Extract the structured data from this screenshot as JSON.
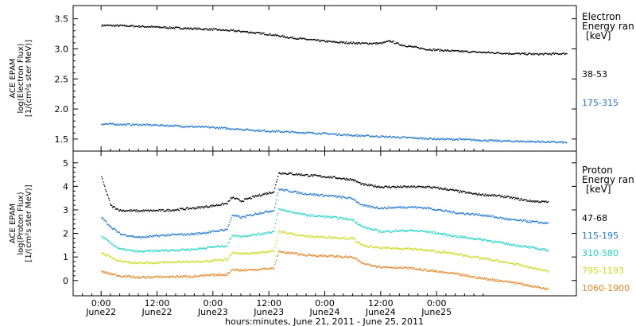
{
  "chart_data": [
    {
      "type": "scatter",
      "ylabel_lines": [
        "ACE EPAM",
        "log(Electron Flux)",
        "[1/(cm²s ster MeV)]"
      ],
      "yticks": [
        "1.5",
        "2.0",
        "2.5",
        "3.0",
        "3.5"
      ],
      "ylim": [
        1.3,
        3.72
      ],
      "legend_title": [
        "Electron",
        "Energy ran",
        "[keV]"
      ],
      "series": [
        {
          "name": "38-53",
          "color": "#000000",
          "points": [
            [
              0,
              3.4
            ],
            [
              6,
              3.39
            ],
            [
              12,
              3.37
            ],
            [
              18,
              3.35
            ],
            [
              24,
              3.33
            ],
            [
              30,
              3.3
            ],
            [
              36,
              3.25
            ],
            [
              40,
              3.2
            ],
            [
              46,
              3.15
            ],
            [
              50,
              3.12
            ],
            [
              56,
              3.1
            ],
            [
              60,
              3.1
            ],
            [
              62,
              3.14
            ],
            [
              64,
              3.08
            ],
            [
              66,
              3.05
            ],
            [
              70,
              3.0
            ],
            [
              76,
              2.97
            ],
            [
              82,
              2.95
            ],
            [
              88,
              2.93
            ],
            [
              94,
              2.92
            ],
            [
              100,
              2.93
            ]
          ]
        },
        {
          "name": "175-315",
          "color": "#1f78d4",
          "points": [
            [
              0,
              1.76
            ],
            [
              6,
              1.75
            ],
            [
              12,
              1.74
            ],
            [
              18,
              1.72
            ],
            [
              24,
              1.7
            ],
            [
              30,
              1.67
            ],
            [
              36,
              1.64
            ],
            [
              42,
              1.62
            ],
            [
              48,
              1.6
            ],
            [
              54,
              1.57
            ],
            [
              60,
              1.55
            ],
            [
              66,
              1.53
            ],
            [
              72,
              1.51
            ],
            [
              78,
              1.5
            ],
            [
              84,
              1.48
            ],
            [
              90,
              1.47
            ],
            [
              96,
              1.46
            ],
            [
              100,
              1.45
            ]
          ]
        }
      ]
    },
    {
      "type": "scatter",
      "ylabel_lines": [
        "ACE EPAM",
        "log(Proton Flux)",
        "[1/(cm²s ster MeV)]"
      ],
      "yticks": [
        "0",
        "1",
        "2",
        "3",
        "4",
        "5"
      ],
      "ylim": [
        -0.65,
        5.5
      ],
      "legend_title": [
        "Proton",
        "Energy ran",
        "[keV]"
      ],
      "series": [
        {
          "name": "47-68",
          "color": "#000000",
          "points": [
            [
              0,
              4.4
            ],
            [
              1,
              3.8
            ],
            [
              2,
              3.2
            ],
            [
              4,
              3.0
            ],
            [
              8,
              2.98
            ],
            [
              14,
              3.0
            ],
            [
              20,
              3.1
            ],
            [
              24,
              3.2
            ],
            [
              27,
              3.3
            ],
            [
              28,
              3.55
            ],
            [
              30,
              3.4
            ],
            [
              33,
              3.6
            ],
            [
              35,
              3.7
            ],
            [
              37,
              3.8
            ],
            [
              38,
              4.6
            ],
            [
              44,
              4.5
            ],
            [
              50,
              4.4
            ],
            [
              54,
              4.3
            ],
            [
              56,
              4.1
            ],
            [
              60,
              4.0
            ],
            [
              66,
              4.0
            ],
            [
              70,
              4.0
            ],
            [
              74,
              3.9
            ],
            [
              80,
              3.7
            ],
            [
              86,
              3.6
            ],
            [
              92,
              3.4
            ],
            [
              96,
              3.35
            ]
          ]
        },
        {
          "name": "115-195",
          "color": "#1f78d4",
          "points": [
            [
              0,
              2.7
            ],
            [
              2,
              2.3
            ],
            [
              4,
              2.0
            ],
            [
              8,
              1.85
            ],
            [
              14,
              1.95
            ],
            [
              20,
              2.0
            ],
            [
              24,
              2.1
            ],
            [
              27,
              2.2
            ],
            [
              28,
              2.8
            ],
            [
              30,
              2.7
            ],
            [
              34,
              2.9
            ],
            [
              37,
              3.0
            ],
            [
              38,
              3.9
            ],
            [
              44,
              3.7
            ],
            [
              50,
              3.6
            ],
            [
              54,
              3.5
            ],
            [
              56,
              3.2
            ],
            [
              60,
              3.1
            ],
            [
              66,
              3.15
            ],
            [
              70,
              3.1
            ],
            [
              76,
              2.9
            ],
            [
              82,
              2.8
            ],
            [
              88,
              2.6
            ],
            [
              96,
              2.45
            ]
          ]
        },
        {
          "name": "310-580",
          "color": "#22d6c8",
          "points": [
            [
              0,
              1.9
            ],
            [
              2,
              1.6
            ],
            [
              4,
              1.35
            ],
            [
              8,
              1.25
            ],
            [
              14,
              1.3
            ],
            [
              20,
              1.35
            ],
            [
              24,
              1.45
            ],
            [
              27,
              1.5
            ],
            [
              28,
              1.95
            ],
            [
              30,
              1.9
            ],
            [
              34,
              2.0
            ],
            [
              37,
              2.1
            ],
            [
              38,
              3.05
            ],
            [
              44,
              2.8
            ],
            [
              50,
              2.7
            ],
            [
              54,
              2.6
            ],
            [
              56,
              2.3
            ],
            [
              60,
              2.1
            ],
            [
              66,
              2.15
            ],
            [
              70,
              2.1
            ],
            [
              76,
              1.9
            ],
            [
              82,
              1.75
            ],
            [
              88,
              1.55
            ],
            [
              96,
              1.3
            ]
          ]
        },
        {
          "name": "795-1193",
          "color": "#c8dc1c",
          "points": [
            [
              0,
              1.2
            ],
            [
              2,
              1.0
            ],
            [
              4,
              0.85
            ],
            [
              8,
              0.75
            ],
            [
              14,
              0.8
            ],
            [
              20,
              0.82
            ],
            [
              24,
              0.88
            ],
            [
              27,
              0.92
            ],
            [
              28,
              1.2
            ],
            [
              30,
              1.15
            ],
            [
              34,
              1.2
            ],
            [
              37,
              1.3
            ],
            [
              38,
              2.1
            ],
            [
              44,
              1.9
            ],
            [
              50,
              1.85
            ],
            [
              54,
              1.8
            ],
            [
              56,
              1.5
            ],
            [
              60,
              1.4
            ],
            [
              66,
              1.38
            ],
            [
              70,
              1.3
            ],
            [
              76,
              1.15
            ],
            [
              82,
              0.95
            ],
            [
              88,
              0.75
            ],
            [
              96,
              0.4
            ]
          ]
        },
        {
          "name": "1060-1900",
          "color": "#e8821e",
          "points": [
            [
              0,
              0.4
            ],
            [
              2,
              0.3
            ],
            [
              4,
              0.22
            ],
            [
              8,
              0.15
            ],
            [
              14,
              0.18
            ],
            [
              20,
              0.2
            ],
            [
              24,
              0.25
            ],
            [
              27,
              0.28
            ],
            [
              28,
              0.5
            ],
            [
              30,
              0.45
            ],
            [
              34,
              0.5
            ],
            [
              37,
              0.55
            ],
            [
              38,
              1.25
            ],
            [
              44,
              1.1
            ],
            [
              50,
              1.05
            ],
            [
              54,
              1.0
            ],
            [
              56,
              0.75
            ],
            [
              60,
              0.6
            ],
            [
              66,
              0.55
            ],
            [
              70,
              0.45
            ],
            [
              76,
              0.3
            ],
            [
              82,
              0.1
            ],
            [
              88,
              -0.05
            ],
            [
              96,
              -0.35
            ]
          ]
        }
      ]
    }
  ],
  "xaxis": {
    "range_hours": [
      -6,
      102
    ],
    "ticks": [
      {
        "hour": 0,
        "time": "0:00",
        "date": "June22"
      },
      {
        "hour": 12,
        "time": "12:00",
        "date": "June22"
      },
      {
        "hour": 24,
        "time": "0:00",
        "date": "June23"
      },
      {
        "hour": 36,
        "time": "12:00",
        "date": "June23"
      },
      {
        "hour": 48,
        "time": "0:00",
        "date": "June24"
      },
      {
        "hour": 60,
        "time": "12:00",
        "date": "June24"
      },
      {
        "hour": 72,
        "time": "0:00",
        "date": "June25"
      }
    ],
    "xlabel": "hours:minutes, June 21, 2011 - June 25, 2011"
  }
}
